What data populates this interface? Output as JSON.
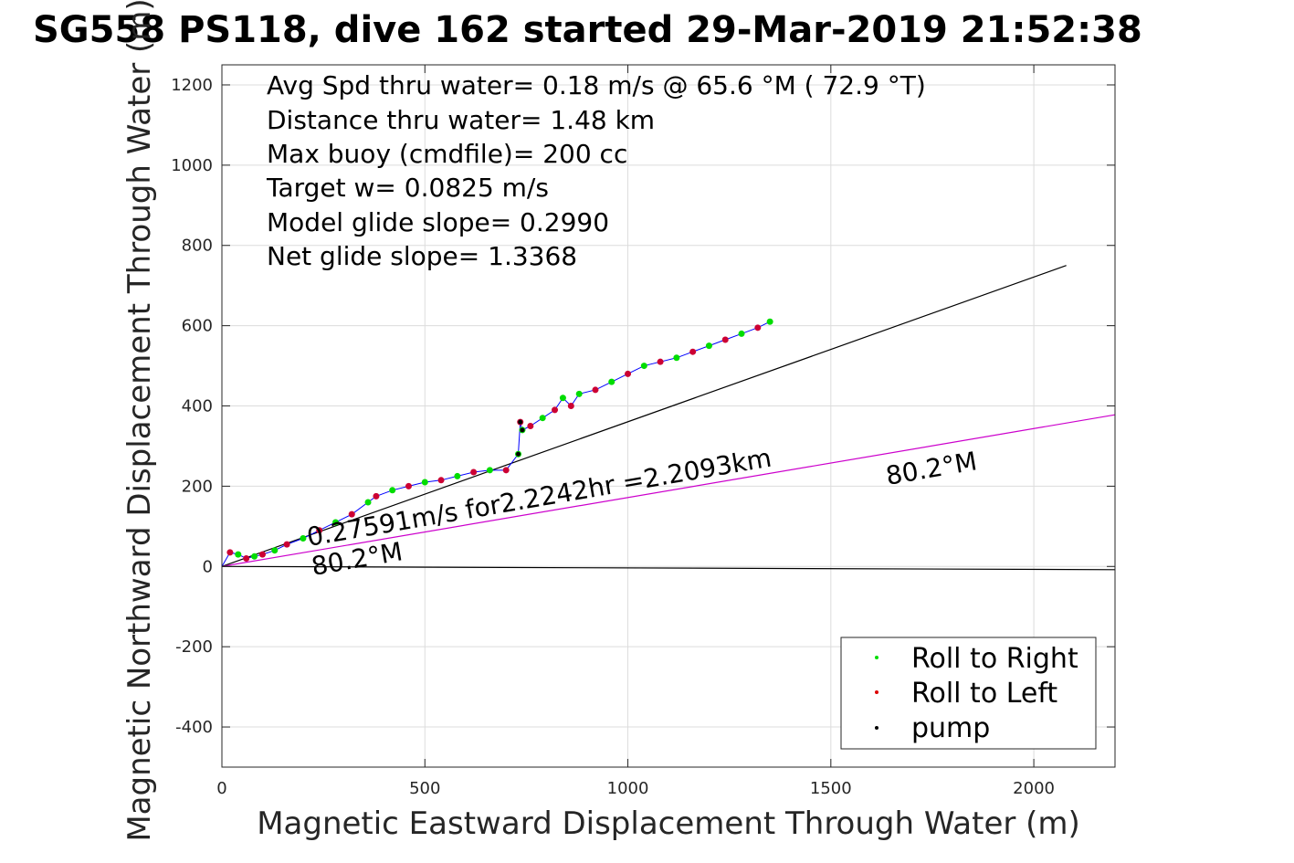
{
  "chart_data": {
    "type": "line",
    "title": "SG558 PS118, dive 162 started 29-Mar-2019 21:52:38",
    "xlabel": "Magnetic Eastward Displacement Through Water (m)",
    "ylabel": "Magnetic Northward Displacement Through Water (m)",
    "xlim": [
      0,
      2200
    ],
    "ylim": [
      -500,
      1250
    ],
    "xticks": [
      0,
      500,
      1000,
      1500,
      2000
    ],
    "yticks": [
      -400,
      -200,
      0,
      200,
      400,
      600,
      800,
      1000,
      1200
    ],
    "grid": true,
    "legend_position": "bottom-right",
    "stats": [
      "Avg Spd thru water=  0.18 m/s @  65.6 °M ( 72.9 °T)",
      "Distance thru water=  1.48 km",
      "Max buoy (cmdfile)= 200 cc",
      "Target w= 0.0825 m/s",
      "Model glide slope= 0.2990",
      "Net glide slope= 1.3368"
    ],
    "annotations": {
      "current_speed": "0.27591m/s for2.2242hr =2.2093km",
      "heading_near": "80.2°M",
      "heading_far": "80.2°M"
    },
    "legend": [
      {
        "label": "Roll to Right",
        "color": "#00dd00"
      },
      {
        "label": "Roll to Left",
        "color": "#dd0000"
      },
      {
        "label": "pump",
        "color": "#000000"
      }
    ],
    "colors": {
      "track": "#0000ff",
      "roll_right": "#00dd00",
      "roll_left": "#cc0033",
      "pump": "#000000",
      "current_vector": "#cc00cc"
    },
    "series": [
      {
        "type": "line",
        "x": [
          0,
          2080
        ],
        "y": [
          0,
          750
        ]
      },
      {
        "type": "line",
        "x": [
          0,
          2200
        ],
        "y": [
          0,
          378
        ]
      },
      {
        "type": "line",
        "x": [
          0,
          2200
        ],
        "y": [
          0,
          -8
        ]
      },
      {
        "type": "track",
        "x": [
          0,
          20,
          40,
          60,
          80,
          100,
          130,
          160,
          200,
          240,
          280,
          320,
          360,
          380,
          420,
          460,
          500,
          540,
          580,
          620,
          660,
          700,
          730,
          735,
          740,
          760,
          790,
          820,
          840,
          860,
          880,
          920,
          960,
          1000,
          1040,
          1080,
          1120,
          1160,
          1200,
          1240,
          1280,
          1320,
          1350
        ],
        "y": [
          0,
          35,
          30,
          20,
          25,
          30,
          40,
          55,
          70,
          90,
          110,
          130,
          160,
          175,
          190,
          200,
          210,
          215,
          225,
          235,
          240,
          240,
          280,
          360,
          340,
          350,
          370,
          390,
          420,
          400,
          430,
          440,
          460,
          480,
          500,
          510,
          520,
          535,
          550,
          565,
          580,
          595,
          610
        ]
      }
    ]
  }
}
